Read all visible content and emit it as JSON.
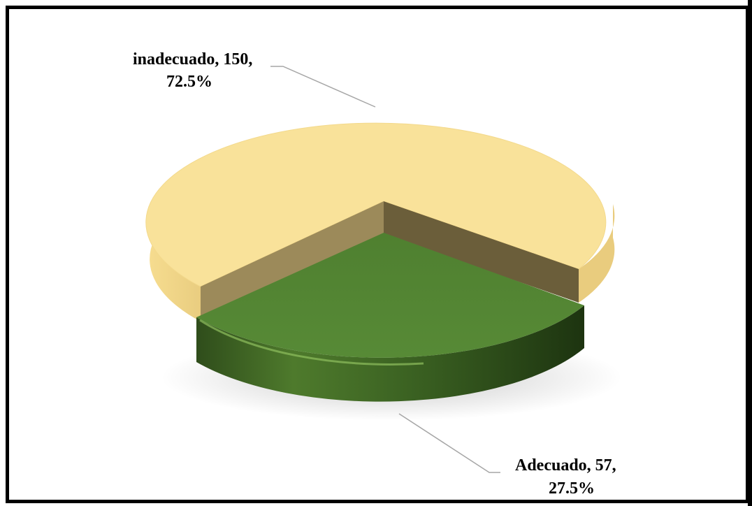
{
  "chart_data": {
    "type": "pie",
    "title": "",
    "slices": [
      {
        "label": "inadecuado",
        "count": 150,
        "percent": 72.5,
        "color": "#f9e29a"
      },
      {
        "label": "Adecuado",
        "count": 57,
        "percent": 27.5,
        "color": "#548235"
      }
    ],
    "labels": {
      "inadecuado_line1": "inadecuado, 150,",
      "inadecuado_line2": "72.5%",
      "adecuado_line1": "Adecuado, 57,",
      "adecuado_line2": "27.5%"
    }
  }
}
